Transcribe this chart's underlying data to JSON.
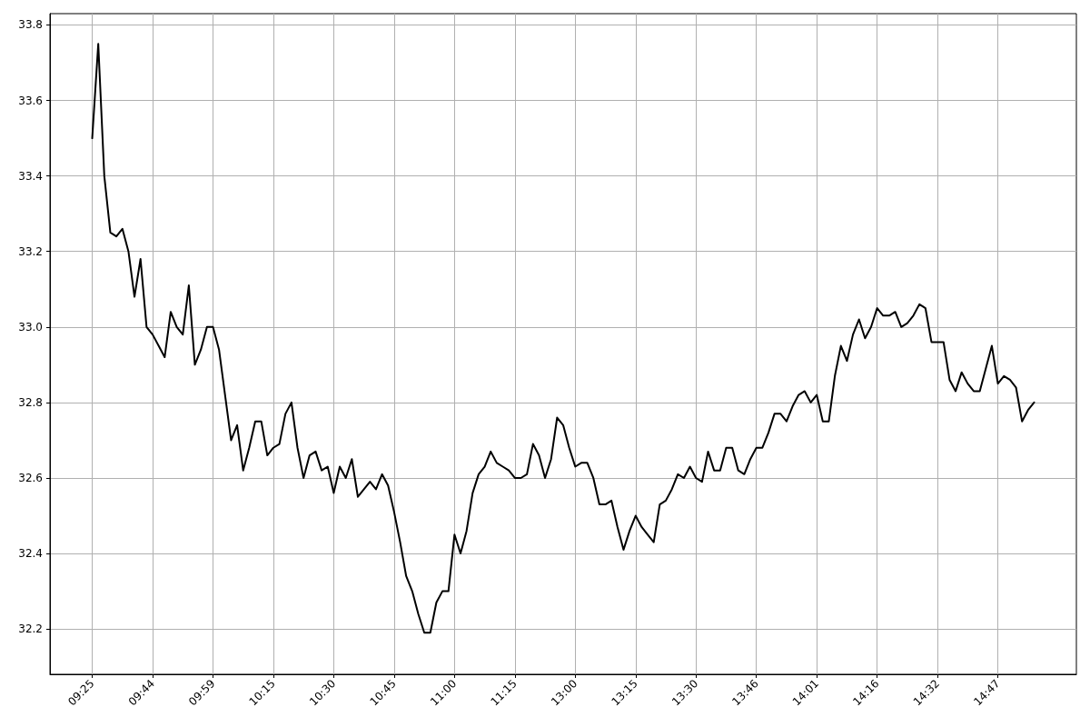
{
  "chart_data": {
    "type": "line",
    "categories": [
      null,
      null,
      null,
      null,
      null,
      null,
      null,
      "09:25",
      null,
      null,
      null,
      null,
      null,
      null,
      null,
      null,
      null,
      "09:44",
      null,
      null,
      null,
      null,
      null,
      null,
      null,
      null,
      null,
      "09:59",
      null,
      null,
      null,
      null,
      null,
      null,
      null,
      null,
      null,
      "10:15",
      null,
      null,
      null,
      null,
      null,
      null,
      null,
      null,
      null,
      "10:30",
      null,
      null,
      null,
      null,
      null,
      null,
      null,
      null,
      null,
      "10:45",
      null,
      null,
      null,
      null,
      null,
      null,
      null,
      null,
      null,
      "11:00",
      null,
      null,
      null,
      null,
      null,
      null,
      null,
      null,
      null,
      "11:15",
      null,
      null,
      null,
      null,
      null,
      null,
      null,
      null,
      null,
      "13:00",
      null,
      null,
      null,
      null,
      null,
      null,
      null,
      null,
      null,
      "13:15",
      null,
      null,
      null,
      null,
      null,
      null,
      null,
      null,
      null,
      "13:30",
      null,
      null,
      null,
      null,
      null,
      null,
      null,
      null,
      null,
      "13:46",
      null,
      null,
      null,
      null,
      null,
      null,
      null,
      null,
      null,
      "14:01",
      null,
      null,
      null,
      null,
      null,
      null,
      null,
      null,
      null,
      "14:16",
      null,
      null,
      null,
      null,
      null,
      null,
      null,
      null,
      null,
      "14:32",
      null,
      null,
      null,
      null,
      null,
      null,
      null,
      null,
      null,
      "14:47",
      null,
      null,
      null,
      null,
      null,
      null,
      null,
      null,
      null,
      null,
      null,
      null,
      null
    ],
    "ylim": [
      32.08,
      33.83
    ],
    "yticks": [
      32.2,
      32.4,
      32.6,
      32.8,
      {
        "value": 33,
        "label": "33.0"
      },
      33.2,
      33.4,
      33.6,
      33.8
    ],
    "grid": true,
    "marker": "none",
    "line_style": "solid",
    "series": [
      {
        "color": "#000000",
        "values": [
          null,
          null,
          null,
          null,
          null,
          null,
          null,
          33.5,
          33.75,
          33.4,
          33.25,
          33.24,
          33.26,
          33.2,
          33.08,
          33.18,
          33.0,
          32.98,
          32.95,
          32.92,
          33.04,
          33.0,
          32.98,
          33.11,
          32.9,
          32.94,
          33.0,
          33.0,
          32.94,
          32.82,
          32.7,
          32.74,
          32.62,
          32.68,
          32.75,
          32.75,
          32.66,
          32.68,
          32.69,
          32.77,
          32.8,
          32.68,
          32.6,
          32.66,
          32.67,
          32.62,
          32.63,
          32.56,
          32.63,
          32.6,
          32.65,
          32.55,
          32.57,
          32.59,
          32.57,
          32.61,
          32.58,
          32.51,
          32.43,
          32.34,
          32.3,
          32.24,
          32.19,
          32.19,
          32.27,
          32.3,
          32.3,
          32.45,
          32.4,
          32.46,
          32.56,
          32.61,
          32.63,
          32.67,
          32.64,
          32.63,
          32.62,
          32.6,
          32.6,
          32.61,
          32.69,
          32.66,
          32.6,
          32.65,
          32.76,
          32.74,
          32.68,
          32.63,
          32.64,
          32.64,
          32.6,
          32.53,
          32.53,
          32.54,
          32.47,
          32.41,
          32.46,
          32.5,
          32.47,
          32.45,
          32.43,
          32.53,
          32.54,
          32.57,
          32.61,
          32.6,
          32.63,
          32.6,
          32.59,
          32.67,
          32.62,
          32.62,
          32.68,
          32.68,
          32.62,
          32.61,
          32.65,
          32.68,
          32.68,
          32.72,
          32.77,
          32.77,
          32.75,
          32.79,
          32.82,
          32.83,
          32.8,
          32.82,
          32.75,
          32.75,
          32.87,
          32.95,
          32.91,
          32.98,
          33.02,
          32.97,
          33.0,
          33.05,
          33.03,
          33.03,
          33.04,
          33.0,
          33.01,
          33.03,
          33.06,
          33.05,
          32.96,
          32.96,
          32.96,
          32.86,
          32.83,
          32.88,
          32.85,
          32.83,
          32.83,
          32.89,
          32.95,
          32.85,
          32.87,
          32.86,
          32.84,
          32.75,
          32.78,
          32.8,
          null,
          null,
          null,
          null,
          null,
          null,
          null
        ]
      }
    ]
  }
}
